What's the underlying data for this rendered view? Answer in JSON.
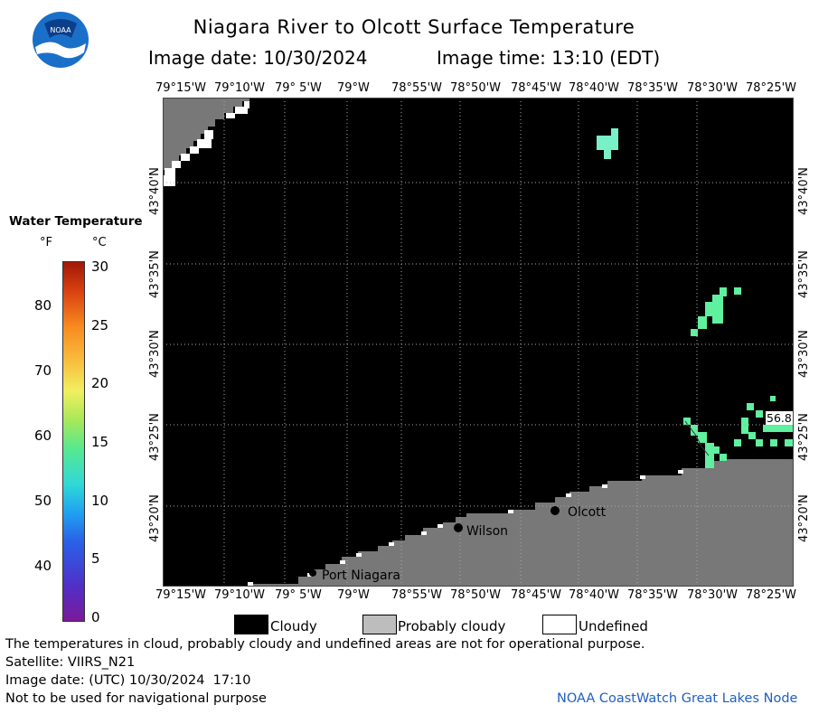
{
  "header": {
    "title": "Niagara River to Olcott Surface Temperature",
    "date_label": "Image date: 10/30/2024",
    "time_label": "Image time: 13:10 (EDT)"
  },
  "logo": {
    "text": "NOAA"
  },
  "colorbar": {
    "title": "Water Temperature",
    "unit_f": "°F",
    "unit_c": "°C",
    "f_ticks": [
      "80",
      "70",
      "60",
      "50",
      "40"
    ],
    "c_ticks": [
      "30",
      "25",
      "20",
      "15",
      "10",
      "5",
      "0"
    ],
    "range_c": [
      0,
      30
    ]
  },
  "axes": {
    "lon_labels": [
      "79°15'W",
      "79°10'W",
      "79° 5'W",
      "79°W",
      "78°55'W",
      "78°50'W",
      "78°45'W",
      "78°40'W",
      "78°35'W",
      "78°30'W",
      "78°25'W"
    ],
    "lat_labels": [
      "43°40'N",
      "43°35'N",
      "43°30'N",
      "43°25'N",
      "43°20'N"
    ]
  },
  "places": {
    "olcott": "Olcott",
    "wilson": "Wilson",
    "port_niagara": "Port Niagara"
  },
  "data_value_label": "56.8",
  "legend": {
    "cloudy": "Cloudy",
    "probably_cloudy": "Probably cloudy",
    "undefined": "Undefined"
  },
  "colors": {
    "cloudy": "#000000",
    "probably_cloudy": "#787878",
    "undefined": "#ffffff",
    "water_temp_patch": "#5ff0a0"
  },
  "footer": {
    "disclaimer": "The temperatures in cloud, probably cloudy and undefined areas are not for operational purpose.",
    "satellite": "Satellite: VIIRS_N21",
    "utc_date": "Image date: (UTC) 10/30/2024  17:10",
    "nav_warning": "Not to be used for navigational purpose",
    "credit": "NOAA CoastWatch Great Lakes Node"
  }
}
